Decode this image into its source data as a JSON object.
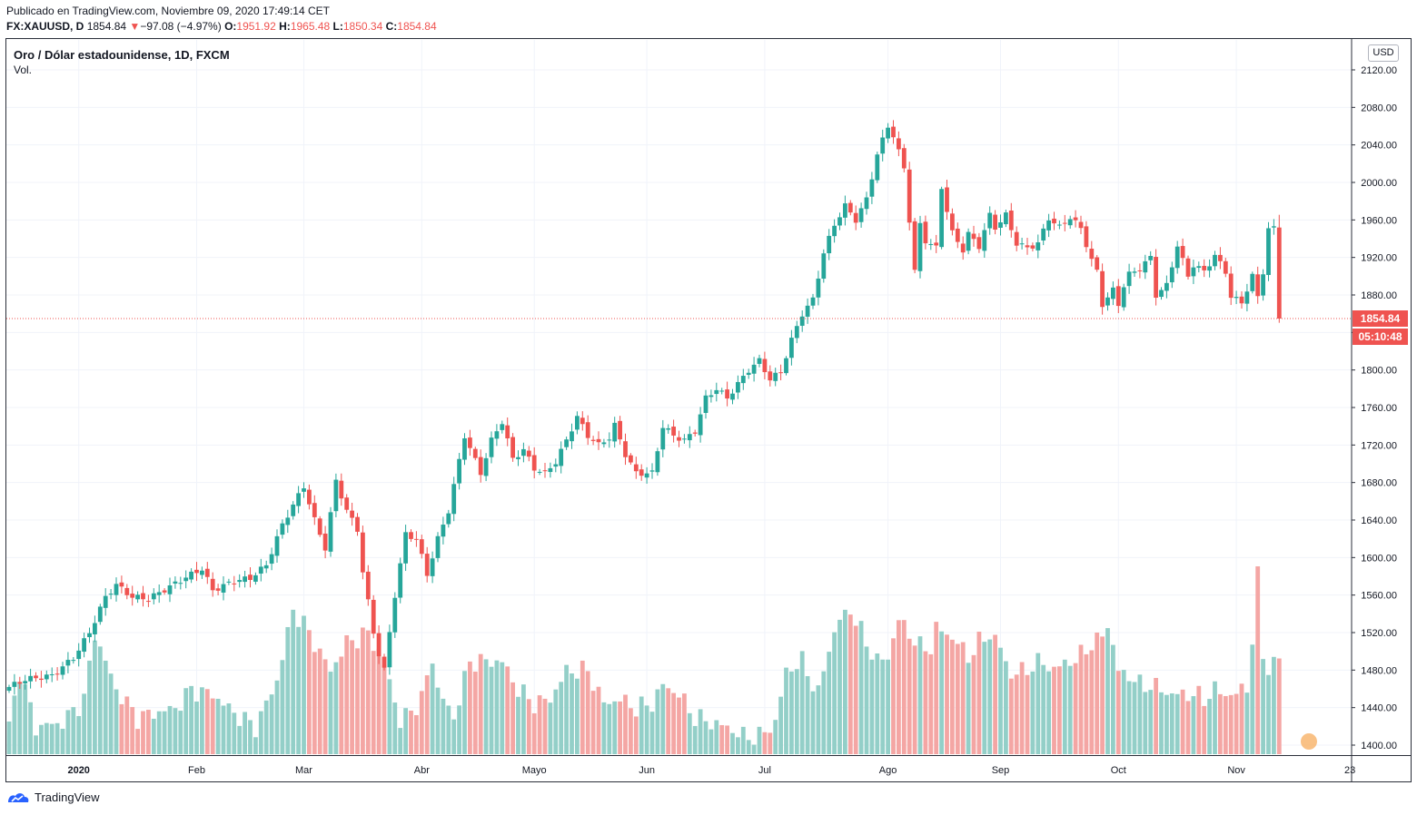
{
  "header": {
    "published": "Publicado en TradingView.com, Noviembre 09, 2020 17:49:14 CET",
    "symbol": "FX:XAUUSD, D",
    "last": "1854.84",
    "change_arrow": "▼",
    "change": "−97.08 (−4.97%)",
    "o_label": "O:",
    "o": "1951.92",
    "h_label": "H:",
    "h": "1965.48",
    "l_label": "L:",
    "l": "1850.34",
    "c_label": "C:",
    "c": "1854.84"
  },
  "legend": {
    "title": "Oro / Dólar estadounidense, 1D, FXCM",
    "volume": "Vol."
  },
  "price_scale": {
    "currency": "USD",
    "current_price": "1854.84",
    "countdown": "05:10:48"
  },
  "footer": {
    "brand": "TradingView",
    "partial_tick": "23"
  },
  "colors": {
    "up": "#26a69a",
    "down": "#ef5350",
    "up_vol": "#93cfc8",
    "down_vol": "#f4a6a4",
    "grid": "#f0f3fa"
  },
  "chart_data": {
    "type": "candlestick",
    "title": "Oro / Dólar estadounidense, 1D, FXCM",
    "ylim": [
      1385,
      2140
    ],
    "yticks": [
      1400,
      1440,
      1480,
      1520,
      1560,
      1600,
      1640,
      1680,
      1720,
      1760,
      1800,
      1840,
      1880,
      1920,
      1960,
      2000,
      2040,
      2080,
      2120
    ],
    "xticks": [
      {
        "label": "2020",
        "index": 13
      },
      {
        "label": "Feb",
        "index": 35
      },
      {
        "label": "Mar",
        "index": 55
      },
      {
        "label": "Abr",
        "index": 77
      },
      {
        "label": "Mayo",
        "index": 98
      },
      {
        "label": "Jun",
        "index": 119
      },
      {
        "label": "Jul",
        "index": 141
      },
      {
        "label": "Ago",
        "index": 164
      },
      {
        "label": "Sep",
        "index": 185
      },
      {
        "label": "Oct",
        "index": 207
      },
      {
        "label": "Nov",
        "index": 229
      }
    ],
    "last_price": 1854.84,
    "close_anchors": [
      [
        0,
        1462
      ],
      [
        3,
        1470
      ],
      [
        8,
        1474
      ],
      [
        12,
        1493
      ],
      [
        15,
        1520
      ],
      [
        18,
        1558
      ],
      [
        20,
        1571
      ],
      [
        23,
        1558
      ],
      [
        26,
        1556
      ],
      [
        30,
        1569
      ],
      [
        33,
        1579
      ],
      [
        36,
        1588
      ],
      [
        38,
        1565
      ],
      [
        42,
        1575
      ],
      [
        45,
        1578
      ],
      [
        48,
        1592
      ],
      [
        51,
        1635
      ],
      [
        53,
        1656
      ],
      [
        55,
        1676
      ],
      [
        57,
        1640
      ],
      [
        59,
        1610
      ],
      [
        61,
        1682
      ],
      [
        63,
        1650
      ],
      [
        65,
        1630
      ],
      [
        66,
        1585
      ],
      [
        68,
        1520
      ],
      [
        69,
        1497
      ],
      [
        70,
        1480
      ],
      [
        72,
        1560
      ],
      [
        74,
        1625
      ],
      [
        76,
        1620
      ],
      [
        78,
        1582
      ],
      [
        80,
        1620
      ],
      [
        82,
        1650
      ],
      [
        85,
        1730
      ],
      [
        88,
        1690
      ],
      [
        90,
        1725
      ],
      [
        92,
        1745
      ],
      [
        94,
        1705
      ],
      [
        96,
        1715
      ],
      [
        98,
        1695
      ],
      [
        100,
        1690
      ],
      [
        102,
        1702
      ],
      [
        104,
        1725
      ],
      [
        106,
        1750
      ],
      [
        108,
        1730
      ],
      [
        110,
        1720
      ],
      [
        112,
        1728
      ],
      [
        113,
        1741
      ],
      [
        115,
        1710
      ],
      [
        117,
        1690
      ],
      [
        120,
        1690
      ],
      [
        122,
        1740
      ],
      [
        124,
        1730
      ],
      [
        126,
        1725
      ],
      [
        128,
        1735
      ],
      [
        130,
        1770
      ],
      [
        132,
        1780
      ],
      [
        134,
        1770
      ],
      [
        136,
        1785
      ],
      [
        138,
        1800
      ],
      [
        140,
        1810
      ],
      [
        142,
        1790
      ],
      [
        144,
        1798
      ],
      [
        146,
        1832
      ],
      [
        148,
        1860
      ],
      [
        150,
        1875
      ],
      [
        152,
        1925
      ],
      [
        154,
        1955
      ],
      [
        156,
        1975
      ],
      [
        158,
        1960
      ],
      [
        160,
        1982
      ],
      [
        162,
        2030
      ],
      [
        164,
        2060
      ],
      [
        165,
        2050
      ],
      [
        167,
        2015
      ],
      [
        169,
        1905
      ],
      [
        170,
        1955
      ],
      [
        171,
        1938
      ],
      [
        173,
        1930
      ],
      [
        174,
        1995
      ],
      [
        175,
        1970
      ],
      [
        176,
        1946
      ],
      [
        178,
        1928
      ],
      [
        179,
        1945
      ],
      [
        181,
        1932
      ],
      [
        183,
        1965
      ],
      [
        184,
        1952
      ],
      [
        186,
        1965
      ],
      [
        188,
        1935
      ],
      [
        190,
        1930
      ],
      [
        192,
        1935
      ],
      [
        194,
        1962
      ],
      [
        196,
        1952
      ],
      [
        198,
        1963
      ],
      [
        200,
        1951
      ],
      [
        202,
        1917
      ],
      [
        203,
        1905
      ],
      [
        204,
        1870
      ],
      [
        206,
        1885
      ],
      [
        207,
        1870
      ],
      [
        208,
        1890
      ],
      [
        209,
        1902
      ],
      [
        211,
        1908
      ],
      [
        213,
        1920
      ],
      [
        214,
        1880
      ],
      [
        216,
        1890
      ],
      [
        218,
        1933
      ],
      [
        220,
        1900
      ],
      [
        221,
        1912
      ],
      [
        223,
        1905
      ],
      [
        225,
        1922
      ],
      [
        227,
        1905
      ],
      [
        228,
        1878
      ],
      [
        230,
        1872
      ],
      [
        232,
        1900
      ],
      [
        233,
        1878
      ],
      [
        234,
        1905
      ],
      [
        235,
        1950
      ],
      [
        236,
        1951
      ],
      [
        237,
        1855
      ]
    ],
    "volume_peaks": [
      [
        0,
        1420
      ],
      [
        2,
        1480
      ],
      [
        5,
        1420
      ],
      [
        10,
        1425
      ],
      [
        14,
        1450
      ],
      [
        16,
        1520
      ],
      [
        20,
        1460
      ],
      [
        24,
        1430
      ],
      [
        27,
        1435
      ],
      [
        31,
        1440
      ],
      [
        34,
        1460
      ],
      [
        38,
        1455
      ],
      [
        42,
        1435
      ],
      [
        46,
        1420
      ],
      [
        50,
        1470
      ],
      [
        53,
        1545
      ],
      [
        55,
        1530
      ],
      [
        57,
        1510
      ],
      [
        60,
        1480
      ],
      [
        63,
        1510
      ],
      [
        67,
        1520
      ],
      [
        69,
        1500
      ],
      [
        71,
        1470
      ],
      [
        73,
        1425
      ],
      [
        77,
        1450
      ],
      [
        79,
        1495
      ],
      [
        80,
        1460
      ],
      [
        83,
        1430
      ],
      [
        86,
        1490
      ],
      [
        89,
        1490
      ],
      [
        92,
        1490
      ],
      [
        95,
        1460
      ],
      [
        98,
        1445
      ],
      [
        101,
        1450
      ],
      [
        104,
        1480
      ],
      [
        108,
        1480
      ],
      [
        111,
        1445
      ],
      [
        114,
        1450
      ],
      [
        117,
        1440
      ],
      [
        120,
        1445
      ],
      [
        122,
        1465
      ],
      [
        125,
        1455
      ],
      [
        128,
        1430
      ],
      [
        131,
        1425
      ],
      [
        134,
        1420
      ],
      [
        137,
        1410
      ],
      [
        140,
        1410
      ],
      [
        143,
        1425
      ],
      [
        145,
        1480
      ],
      [
        148,
        1490
      ],
      [
        151,
        1455
      ],
      [
        153,
        1505
      ],
      [
        155,
        1535
      ],
      [
        157,
        1545
      ],
      [
        160,
        1510
      ],
      [
        162,
        1490
      ],
      [
        164,
        1495
      ],
      [
        166,
        1535
      ],
      [
        168,
        1520
      ],
      [
        170,
        1505
      ],
      [
        172,
        1505
      ],
      [
        173,
        1525
      ],
      [
        175,
        1520
      ],
      [
        177,
        1510
      ],
      [
        179,
        1495
      ],
      [
        181,
        1510
      ],
      [
        183,
        1520
      ],
      [
        185,
        1505
      ],
      [
        187,
        1475
      ],
      [
        189,
        1480
      ],
      [
        191,
        1485
      ],
      [
        193,
        1490
      ],
      [
        195,
        1480
      ],
      [
        197,
        1490
      ],
      [
        199,
        1490
      ],
      [
        201,
        1505
      ],
      [
        203,
        1510
      ],
      [
        205,
        1530
      ],
      [
        207,
        1480
      ],
      [
        209,
        1475
      ],
      [
        211,
        1465
      ],
      [
        213,
        1465
      ],
      [
        215,
        1460
      ],
      [
        217,
        1455
      ],
      [
        219,
        1455
      ],
      [
        221,
        1455
      ],
      [
        223,
        1450
      ],
      [
        225,
        1460
      ],
      [
        227,
        1455
      ],
      [
        229,
        1455
      ],
      [
        231,
        1465
      ],
      [
        232,
        1510
      ],
      [
        233,
        1580
      ],
      [
        234,
        1500
      ],
      [
        235,
        1480
      ],
      [
        237,
        1495
      ]
    ]
  }
}
